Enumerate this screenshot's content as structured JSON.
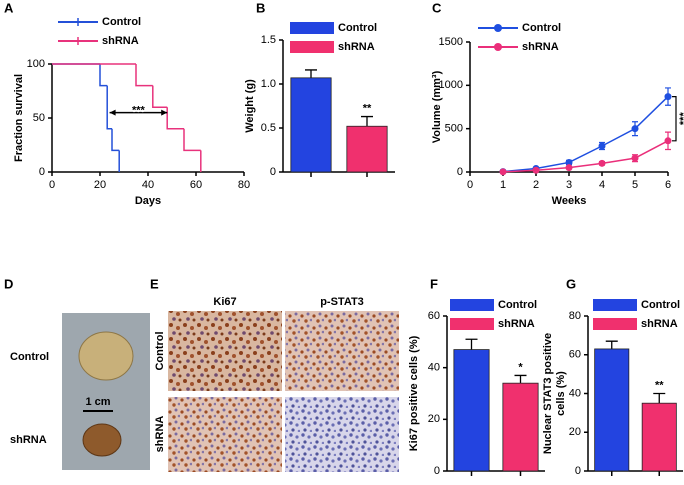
{
  "figure": {
    "panel_labels": [
      "A",
      "B",
      "C",
      "D",
      "E",
      "F",
      "G"
    ],
    "tumor_photo": {
      "labels": [
        "Control",
        "shRNA"
      ],
      "scale_bar": "1 cm"
    },
    "ihc_photo": {
      "stains": [
        "Ki67",
        "p-STAT3"
      ],
      "groups": [
        "Control",
        "shRNA"
      ]
    }
  },
  "chart_data": [
    {
      "type": "step",
      "xlabel": "Days",
      "ylabel": "Fraction survival",
      "xlim": [
        0,
        80
      ],
      "xticks": [
        0,
        20,
        40,
        60,
        80
      ],
      "ylim": [
        0,
        100
      ],
      "yticks": [
        0,
        50,
        100
      ],
      "annotation": "***",
      "series": [
        {
          "name": "Control",
          "color": "#2450d8",
          "x": [
            0,
            20,
            23,
            25,
            28
          ],
          "values": [
            100,
            80,
            40,
            20,
            0
          ]
        },
        {
          "name": "shRNA",
          "color": "#e8327c",
          "x": [
            0,
            35,
            42,
            48,
            55,
            62
          ],
          "values": [
            100,
            80,
            60,
            40,
            20,
            0
          ]
        }
      ]
    },
    {
      "type": "bar",
      "ylabel": "Weight (g)",
      "ylim": [
        0,
        1.5
      ],
      "yticks": [
        0,
        0.5,
        {
          "value": 1,
          "label": "1.0"
        },
        1.5
      ],
      "annotation": "**",
      "series": [
        {
          "name": "Control",
          "color": "#2344e0",
          "values": [
            1.07
          ],
          "errors": [
            0.09
          ]
        },
        {
          "name": "shRNA",
          "color": "#f0306e",
          "values": [
            0.52
          ],
          "errors": [
            0.11
          ]
        }
      ]
    },
    {
      "type": "line",
      "xlabel": "Weeks",
      "ylabel": "Volume (mm³)",
      "x": [
        1,
        2,
        3,
        4,
        5,
        6
      ],
      "xlim": [
        0,
        6
      ],
      "xticks": [
        0,
        1,
        2,
        3,
        4,
        5,
        6
      ],
      "ylim": [
        0,
        1500
      ],
      "yticks": [
        0,
        500,
        1000,
        1500
      ],
      "annotation": "***",
      "series": [
        {
          "name": "Control",
          "color": "#1f4fe0",
          "values": [
            5,
            40,
            110,
            300,
            500,
            870
          ],
          "errors": [
            5,
            10,
            25,
            40,
            80,
            100
          ]
        },
        {
          "name": "shRNA",
          "color": "#ea2f7a",
          "values": [
            2,
            20,
            50,
            100,
            160,
            360
          ],
          "errors": [
            2,
            8,
            15,
            20,
            40,
            100
          ]
        }
      ]
    },
    {
      "type": "bar",
      "ylabel": "Ki67 positive cells (%)",
      "ylim": [
        0,
        60
      ],
      "yticks": [
        0,
        20,
        40,
        60
      ],
      "annotation": "*",
      "series": [
        {
          "name": "Control",
          "color": "#2344e0",
          "values": [
            47
          ],
          "errors": [
            4
          ]
        },
        {
          "name": "shRNA",
          "color": "#f0306e",
          "values": [
            34
          ],
          "errors": [
            3
          ]
        }
      ]
    },
    {
      "type": "bar",
      "ylabel": [
        "Nuclear STAT3 positive",
        "cells (%)"
      ],
      "ylim": [
        0,
        80
      ],
      "yticks": [
        0,
        20,
        40,
        60,
        80
      ],
      "annotation": "**",
      "series": [
        {
          "name": "Control",
          "color": "#2344e0",
          "values": [
            63
          ],
          "errors": [
            4
          ]
        },
        {
          "name": "shRNA",
          "color": "#f0306e",
          "values": [
            35
          ],
          "errors": [
            5
          ]
        }
      ]
    }
  ]
}
